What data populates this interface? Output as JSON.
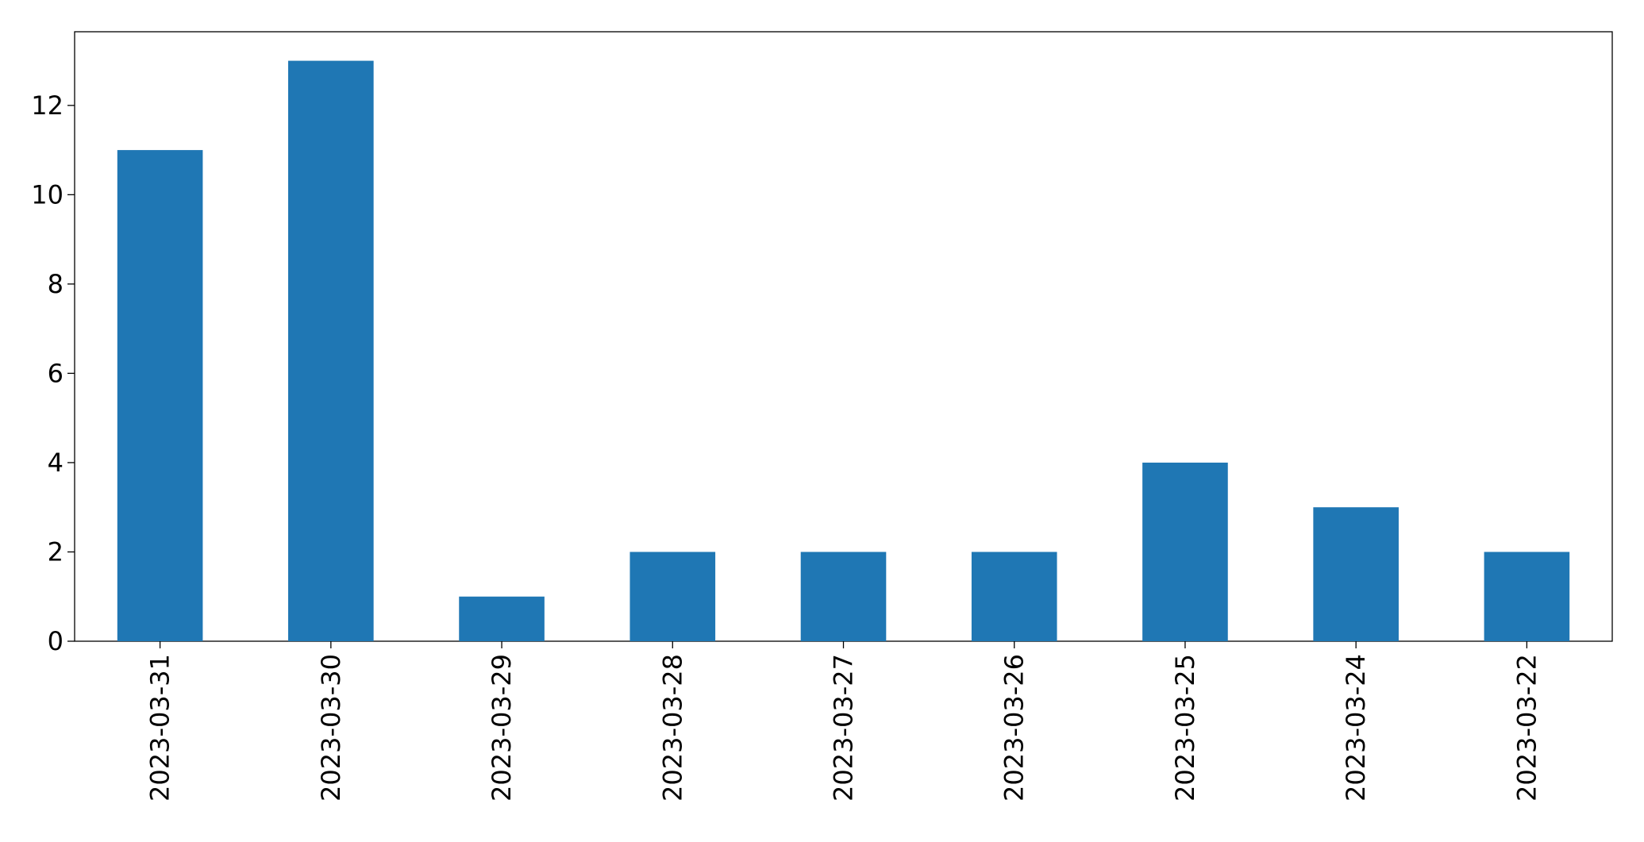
{
  "chart_data": {
    "type": "bar",
    "categories": [
      "2023-03-31",
      "2023-03-30",
      "2023-03-29",
      "2023-03-28",
      "2023-03-27",
      "2023-03-26",
      "2023-03-25",
      "2023-03-24",
      "2023-03-22"
    ],
    "values": [
      11,
      13,
      1,
      2,
      2,
      2,
      4,
      3,
      2
    ],
    "color": "#1f77b4",
    "ylim": [
      0,
      13.65
    ],
    "yticks": [
      0,
      2,
      4,
      6,
      8,
      10,
      12
    ],
    "grid": false
  }
}
